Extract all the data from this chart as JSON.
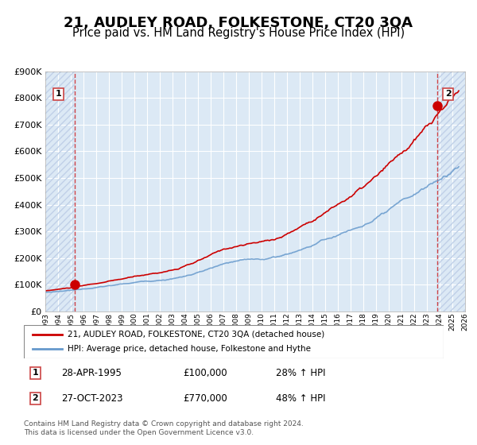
{
  "title": "21, AUDLEY ROAD, FOLKESTONE, CT20 3QA",
  "subtitle": "Price paid vs. HM Land Registry's House Price Index (HPI)",
  "title_fontsize": 13,
  "subtitle_fontsize": 10.5,
  "background_color": "#dce9f5",
  "hatch_color": "#c0d0e8",
  "grid_color": "#ffffff",
  "red_line_color": "#cc0000",
  "blue_line_color": "#6699cc",
  "point1_date_num": 1995.33,
  "point1_value": 100000,
  "point2_date_num": 2023.83,
  "point2_value": 770000,
  "xmin": 1993,
  "xmax": 2026,
  "ymin": 0,
  "ymax": 900000,
  "yticks": [
    0,
    100000,
    200000,
    300000,
    400000,
    500000,
    600000,
    700000,
    800000,
    900000
  ],
  "ytick_labels": [
    "£0",
    "£100K",
    "£200K",
    "£300K",
    "£400K",
    "£500K",
    "£600K",
    "£700K",
    "£800K",
    "£900K"
  ],
  "xticks": [
    1993,
    1994,
    1995,
    1996,
    1997,
    1998,
    1999,
    2000,
    2001,
    2002,
    2003,
    2004,
    2005,
    2006,
    2007,
    2008,
    2009,
    2010,
    2011,
    2012,
    2013,
    2014,
    2015,
    2016,
    2017,
    2018,
    2019,
    2020,
    2021,
    2022,
    2023,
    2024,
    2025,
    2026
  ],
  "legend_line1": "21, AUDLEY ROAD, FOLKESTONE, CT20 3QA (detached house)",
  "legend_line2": "HPI: Average price, detached house, Folkestone and Hythe",
  "annotation1_label": "1",
  "annotation1_date": "28-APR-1995",
  "annotation1_price": "£100,000",
  "annotation1_hpi": "28% ↑ HPI",
  "annotation2_label": "2",
  "annotation2_date": "27-OCT-2023",
  "annotation2_price": "£770,000",
  "annotation2_hpi": "48% ↑ HPI",
  "footer": "Contains HM Land Registry data © Crown copyright and database right 2024.\nThis data is licensed under the Open Government Licence v3.0."
}
